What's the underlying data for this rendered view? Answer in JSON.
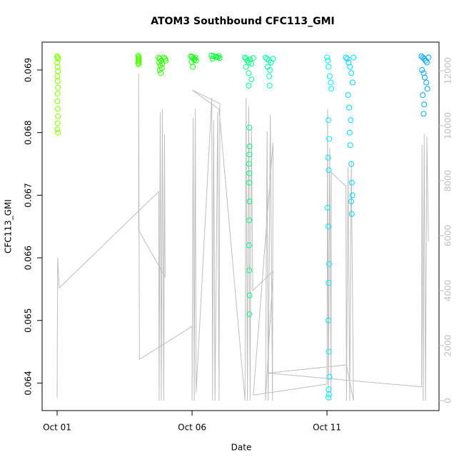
{
  "chart_data": {
    "type": "scatter",
    "title": "ATOM3 Southbound CFC113_GMI",
    "x_label": "Date",
    "y_label": "CFC113_GMI",
    "xlim": [
      -0.556,
      14.15
    ],
    "ylim": [
      0.06356,
      0.069445
    ],
    "y2lim": [
      -364,
      13040
    ],
    "xticks": [
      {
        "value": 0,
        "label": "Oct 01"
      },
      {
        "value": 5,
        "label": "Oct 06"
      },
      {
        "value": 10,
        "label": "Oct 11"
      }
    ],
    "yticks": [
      0.064,
      0.065,
      0.066,
      0.067,
      0.068,
      0.069
    ],
    "y2ticks": [
      0,
      2000,
      4000,
      6000,
      8000,
      10000,
      12000
    ],
    "series": [
      {
        "type": "line",
        "axis": "y2",
        "color": "#bebebe",
        "x": [
          0,
          0.02,
          0.08,
          3.76,
          3.78,
          3.82,
          3.86,
          3.9,
          3.95,
          3.98,
          4.0,
          3.02,
          3.02,
          3.05,
          5.0,
          5.0,
          5.04,
          5.08,
          5.12,
          5.15,
          5.73,
          5.76,
          5.8,
          5.85,
          5.95,
          6.0,
          6.03,
          5.0,
          6.0,
          6.96,
          7.0,
          7.05,
          7.1,
          7.15,
          7.2,
          7.25,
          8.0,
          7.72,
          7.78,
          7.82,
          7.9,
          7.98,
          8.0,
          7.27,
          10.0,
          10.02,
          10.05,
          10.1,
          10.15,
          10.16,
          10.7,
          10.72,
          10.78,
          10.84,
          10.9,
          10.98,
          10.72,
          7.8,
          13.5,
          13.52,
          13.56,
          13.6,
          13.65,
          13.7,
          13.76
        ],
        "values": [
          100,
          5200,
          4100,
          7600,
          0,
          10500,
          0,
          10600,
          0,
          9700,
          4500,
          6200,
          11900,
          1500,
          2700,
          0,
          10300,
          0,
          10600,
          300,
          11000,
          0,
          10200,
          0,
          10500,
          0,
          10800,
          11300,
          10600,
          0,
          11000,
          0,
          10700,
          0,
          9900,
          4000,
          4700,
          0,
          9800,
          0,
          10400,
          0,
          9400,
          200,
          600,
          10600,
          0,
          9200,
          0,
          8300,
          7800,
          0,
          8500,
          0,
          8700,
          0,
          1300,
          1000,
          500,
          9300,
          0,
          9700,
          0,
          9600,
          5800
        ]
      },
      {
        "color": "#7fff00",
        "x": [
          0,
          0.02,
          0.04,
          0,
          0.02,
          0.03,
          0.01,
          0.02,
          0.03,
          0.02,
          0.01,
          0.02,
          0.03,
          0.02,
          0.01,
          0.03
        ],
        "values": [
          0.06922,
          0.0692,
          0.06918,
          0.06912,
          0.06905,
          0.06898,
          0.0689,
          0.06882,
          0.06872,
          0.06862,
          0.0685,
          0.06838,
          0.06826,
          0.06815,
          0.06805,
          0.068
        ]
      },
      {
        "color": "#4cff00",
        "x": [
          3.0,
          3.02,
          3.03,
          3.01,
          3.02,
          3.03,
          3.0,
          3.02
        ],
        "values": [
          0.06923,
          0.06921,
          0.06919,
          0.06917,
          0.06915,
          0.06913,
          0.06911,
          0.06909
        ]
      },
      {
        "color": "#2eff00",
        "x": [
          3.76,
          3.8,
          3.85,
          3.78,
          3.9,
          3.82,
          3.88,
          3.8,
          3.84,
          3.95,
          4.0,
          4.02
        ],
        "values": [
          0.0692,
          0.06918,
          0.06915,
          0.06912,
          0.0691,
          0.06907,
          0.06903,
          0.069,
          0.06895,
          0.0692,
          0.06918,
          0.06915
        ]
      },
      {
        "color": "#1aff1a",
        "x": [
          4.95,
          5.0,
          5.05,
          5.1,
          5.15,
          4.98,
          5.08,
          5.12,
          5.03
        ],
        "values": [
          0.06922,
          0.06921,
          0.06919,
          0.06917,
          0.06915,
          0.06913,
          0.06916,
          0.0692,
          0.06905
        ]
      },
      {
        "color": "#00ff33",
        "x": [
          5.72,
          5.8,
          5.88,
          5.95,
          6.02,
          5.76,
          5.9,
          5.99
        ],
        "values": [
          0.06923,
          0.06922,
          0.06921,
          0.0692,
          0.06919,
          0.06918,
          0.06921,
          0.06922
        ]
      },
      {
        "color": "#00ff80",
        "x": [
          6.96,
          7.0,
          7.05,
          7.1,
          7.15,
          7.2,
          7.27,
          7.0,
          7.1,
          7.2,
          7.1,
          7.12,
          7.13,
          7.12,
          7.11,
          7.12,
          7.12,
          7.13,
          7.12,
          7.11,
          7.12,
          7.13,
          7.12
        ],
        "values": [
          0.0692,
          0.06918,
          0.06915,
          0.06912,
          0.06917,
          0.0691,
          0.06919,
          0.06905,
          0.06895,
          0.06885,
          0.06875,
          0.06808,
          0.06778,
          0.06765,
          0.0675,
          0.06735,
          0.0672,
          0.0669,
          0.0666,
          0.0662,
          0.0658,
          0.0654,
          0.0651
        ]
      },
      {
        "color": "#00ffa6",
        "x": [
          7.72,
          7.78,
          7.85,
          7.92,
          8.0,
          7.8,
          7.88,
          7.86,
          7.87
        ],
        "values": [
          0.0692,
          0.06918,
          0.06915,
          0.06912,
          0.06918,
          0.06905,
          0.069,
          0.0689,
          0.06875
        ]
      },
      {
        "color": "#00f0ff",
        "x": [
          10.0,
          10.03,
          10.06,
          10.1,
          10.14,
          10.16,
          10.05,
          10.08,
          10.04,
          10.07,
          10.02,
          10.05,
          10.08,
          10.06,
          10.05,
          10.07,
          10.09,
          10.06,
          10.07,
          10.05
        ],
        "values": [
          0.0692,
          0.06915,
          0.06905,
          0.0689,
          0.0688,
          0.0687,
          0.0682,
          0.0679,
          0.0676,
          0.0674,
          0.0668,
          0.0665,
          0.0659,
          0.0656,
          0.065,
          0.0645,
          0.0641,
          0.0639,
          0.06382,
          0.06377
        ]
      },
      {
        "color": "#00d4ff",
        "x": [
          10.7,
          10.75,
          10.8,
          10.85,
          10.9,
          10.95,
          10.98,
          10.78,
          10.82,
          10.88,
          10.84,
          10.86,
          10.9,
          10.92,
          10.94,
          10.9,
          10.92
        ],
        "values": [
          0.0692,
          0.06918,
          0.06912,
          0.06905,
          0.06895,
          0.0688,
          0.0692,
          0.0686,
          0.0684,
          0.0682,
          0.068,
          0.0678,
          0.0675,
          0.0672,
          0.067,
          0.0669,
          0.0667
        ]
      },
      {
        "color": "#00a6ff",
        "x": [
          13.5,
          13.55,
          13.6,
          13.65,
          13.7,
          13.76,
          13.52,
          13.58,
          13.62,
          13.68,
          13.72,
          13.55,
          13.6,
          13.58
        ],
        "values": [
          0.06922,
          0.0692,
          0.06918,
          0.06915,
          0.06912,
          0.0692,
          0.069,
          0.06895,
          0.06888,
          0.0688,
          0.0687,
          0.0686,
          0.06845,
          0.0683
        ]
      }
    ]
  }
}
